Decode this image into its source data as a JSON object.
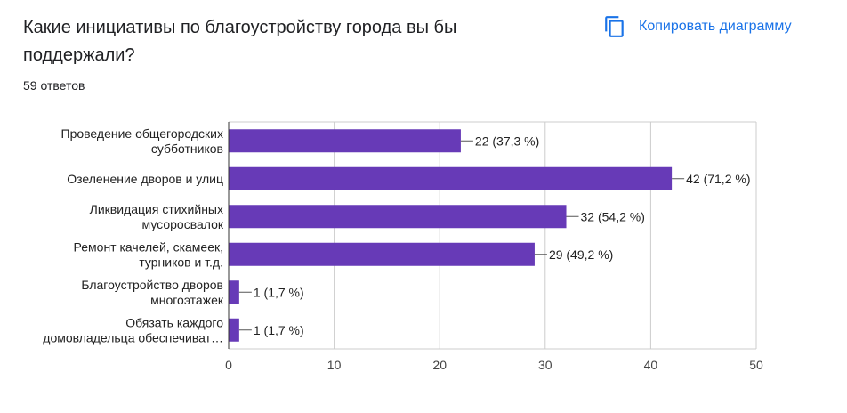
{
  "header": {
    "title": "Какие инициативы по благоустройству города вы бы поддержали?",
    "responses": "59 ответов",
    "copy_label": "Копировать диаграмму"
  },
  "colors": {
    "bar": "#673ab7",
    "accent": "#1a73e8",
    "grid": "#cccccc",
    "axis": "#333333"
  },
  "chart_data": {
    "type": "bar",
    "orientation": "horizontal",
    "categories": [
      [
        "Проведение общегородских",
        "субботников"
      ],
      [
        "Озеленение дворов и улиц"
      ],
      [
        "Ликвидация стихийных",
        "мусоросвалок"
      ],
      [
        "Ремонт качелей, скамеек,",
        "турников и т.д."
      ],
      [
        "Благоустройство дворов",
        "многоэтажек"
      ],
      [
        "Обязать каждого",
        "домовладельца обеспечиват…"
      ]
    ],
    "values": [
      22,
      42,
      32,
      29,
      1,
      1
    ],
    "data_labels": [
      "22 (37,3 %)",
      "42 (71,2 %)",
      "32 (54,2 %)",
      "29 (49,2 %)",
      "1 (1,7 %)",
      "1 (1,7 %)"
    ],
    "xlim": [
      0,
      50
    ],
    "xticks": [
      0,
      10,
      20,
      30,
      40,
      50
    ],
    "grid": true
  }
}
